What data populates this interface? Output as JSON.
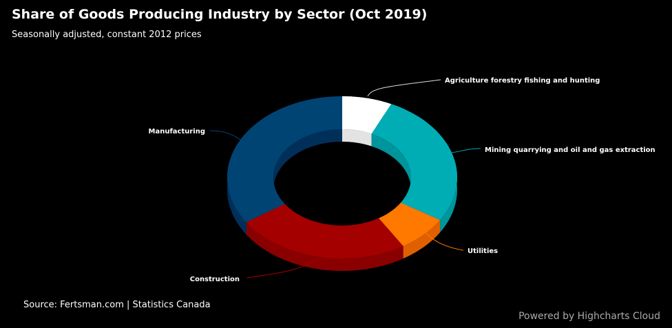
{
  "chart_data": {
    "type": "pie",
    "variant": "3d-donut",
    "title": "Share of Goods Producing Industry by Sector (Oct 2019)",
    "subtitle": "Seasonally adjusted, constant 2012 prices",
    "series": [
      {
        "name": "Agriculture forestry fishing and hunting",
        "value": 7.0,
        "color": "#ffffff",
        "side": "#e3e3e3"
      },
      {
        "name": "Mining quarrying and oil and gas extraction",
        "value": 26.8,
        "color": "#00adb5",
        "side": "#00959c"
      },
      {
        "name": "Utilities",
        "value": 7.3,
        "color": "#ff7800",
        "side": "#e06000"
      },
      {
        "name": "Construction",
        "value": 24.6,
        "color": "#a50000",
        "side": "#8a0000"
      },
      {
        "name": "Manufacturing",
        "value": 34.3,
        "color": "#004474",
        "side": "#00305a"
      }
    ]
  },
  "source": "Source: Fertsman.com | Statistics Canada",
  "credits": "Powered by Highcharts Cloud"
}
